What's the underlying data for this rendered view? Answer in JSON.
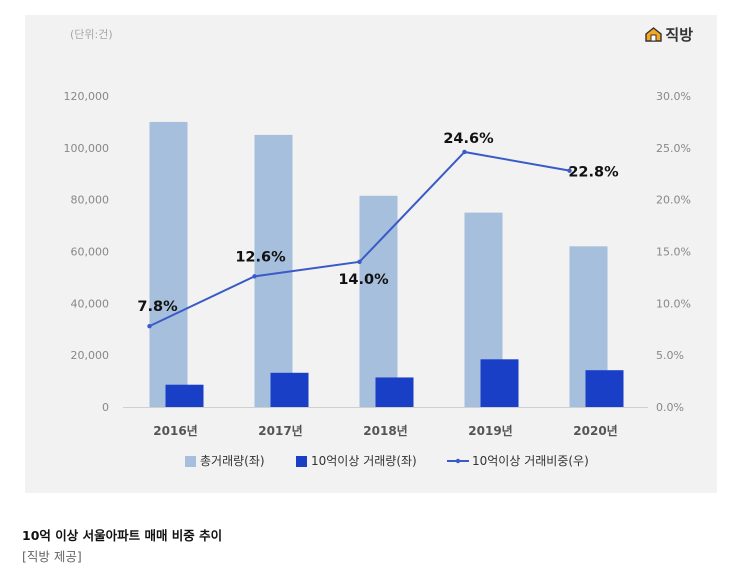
{
  "header": {
    "unit": "(단위:건)",
    "logo_text": "직방"
  },
  "caption": {
    "title": "10억 이상 서울아파트 매매 비중 추이",
    "source": "[직방 제공]"
  },
  "colors": {
    "total_bar": "#a6bfdc",
    "high_bar": "#1a3fc7",
    "ratio_line": "#3a5bc7",
    "logo_accent": "#f5a623"
  },
  "chart_data": {
    "type": "bar",
    "categories": [
      "2016년",
      "2017년",
      "2018년",
      "2019년",
      "2020년"
    ],
    "series": [
      {
        "name": "총거래량(좌)",
        "type": "bar",
        "axis": "left",
        "values": [
          110000,
          105000,
          81500,
          75000,
          62000
        ]
      },
      {
        "name": "10억이상 거래량(좌)",
        "type": "bar",
        "axis": "left",
        "values": [
          8600,
          13200,
          11400,
          18400,
          14200
        ]
      },
      {
        "name": "10억이상 거래비중(우)",
        "type": "line",
        "axis": "right",
        "values": [
          7.8,
          12.6,
          14.0,
          24.6,
          22.8
        ],
        "data_labels": [
          "7.8%",
          "12.6%",
          "14.0%",
          "24.6%",
          "22.8%"
        ]
      }
    ],
    "y_left": {
      "range": [
        0,
        120000
      ],
      "ticks": [
        "0",
        "20,000",
        "40,000",
        "60,000",
        "80,000",
        "100,000",
        "120,000"
      ]
    },
    "y_right": {
      "range": [
        0,
        30
      ],
      "ticks": [
        "0.0%",
        "5.0%",
        "10.0%",
        "15.0%",
        "20.0%",
        "25.0%",
        "30.0%"
      ]
    },
    "grid": false,
    "legend_position": "bottom"
  }
}
